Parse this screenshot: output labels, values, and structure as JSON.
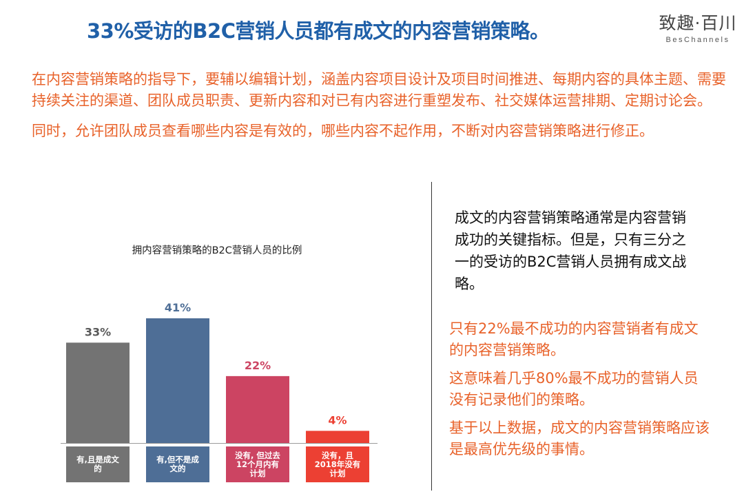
{
  "header": {
    "title": "33%受访的B2C营销人员都有成文的内容营销策略。",
    "logo_cn": "致趣·百川",
    "logo_en": "BesChannels"
  },
  "intro": {
    "paragraph1": "在内容营销策略的指导下，要辅以编辑计划，涵盖内容项目设计及项目时间推进、每期内容的具体主题、需要持续关注的渠道、团队成员职责、更新内容和对已有内容进行重塑发布、社交媒体运营排期、定期讨论会。",
    "paragraph2": "同时，允许团队成员查看哪些内容是有效的，哪些内容不起作用，不断对内容营销策略进行修正。"
  },
  "chart_data": {
    "type": "bar",
    "title": "拥内容营销策略的B2C营销人员的比例",
    "categories": [
      "有,且是成文的",
      "有,但不是成文的",
      "没有, 但过去12个月内有计划",
      "没有，且2018年没有计划"
    ],
    "values": [
      33,
      41,
      22,
      4
    ],
    "value_labels": [
      "33%",
      "41%",
      "22%",
      "4%"
    ],
    "colors": [
      "#737373",
      "#4e6e96",
      "#cc4462",
      "#ec4033"
    ],
    "value_label_colors": [
      "#595959",
      "#4e6e96",
      "#cc4462",
      "#ec4033"
    ],
    "ylim": [
      0,
      41
    ],
    "grid": false,
    "xlabel": "",
    "ylabel": ""
  },
  "right_panel": {
    "black_text": "成文的内容营销策略通常是内容营销成功的关键指标。但是，只有三分之一的受访的B2C营销人员拥有成文战略。",
    "orange_paragraphs": [
      "只有22%最不成功的内容营销者有成文的内容营销策略。",
      "这意味着几乎80%最不成功的营销人员没有记录他们的策略。",
      "基于以上数据，成文的内容营销策略应该是最高优先级的事情。"
    ]
  }
}
